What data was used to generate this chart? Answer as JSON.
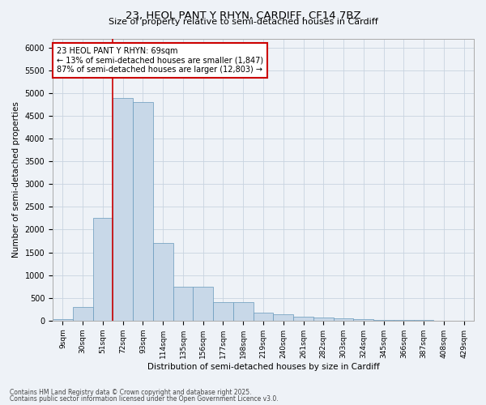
{
  "title1": "23, HEOL PANT Y RHYN, CARDIFF, CF14 7BZ",
  "title2": "Size of property relative to semi-detached houses in Cardiff",
  "xlabel": "Distribution of semi-detached houses by size in Cardiff",
  "ylabel": "Number of semi-detached properties",
  "categories": [
    "9sqm",
    "30sqm",
    "51sqm",
    "72sqm",
    "93sqm",
    "114sqm",
    "135sqm",
    "156sqm",
    "177sqm",
    "198sqm",
    "219sqm",
    "240sqm",
    "261sqm",
    "282sqm",
    "303sqm",
    "324sqm",
    "345sqm",
    "366sqm",
    "387sqm",
    "408sqm",
    "429sqm"
  ],
  "values": [
    25,
    300,
    2250,
    4900,
    4800,
    1700,
    750,
    750,
    400,
    400,
    175,
    140,
    95,
    70,
    50,
    35,
    18,
    12,
    8,
    4,
    2
  ],
  "bar_color": "#c8d8e8",
  "bar_edge_color": "#6699bb",
  "grid_color": "#c8d4e0",
  "background_color": "#eef2f7",
  "vline_color": "#cc0000",
  "vline_x": 2.5,
  "annotation_text": "23 HEOL PANT Y RHYN: 69sqm\n← 13% of semi-detached houses are smaller (1,847)\n87% of semi-detached houses are larger (12,803) →",
  "annotation_box_color": "#ffffff",
  "annotation_box_edge": "#cc0000",
  "ylim": [
    0,
    6200
  ],
  "yticks": [
    0,
    500,
    1000,
    1500,
    2000,
    2500,
    3000,
    3500,
    4000,
    4500,
    5000,
    5500,
    6000
  ],
  "footer1": "Contains HM Land Registry data © Crown copyright and database right 2025.",
  "footer2": "Contains public sector information licensed under the Open Government Licence v3.0."
}
